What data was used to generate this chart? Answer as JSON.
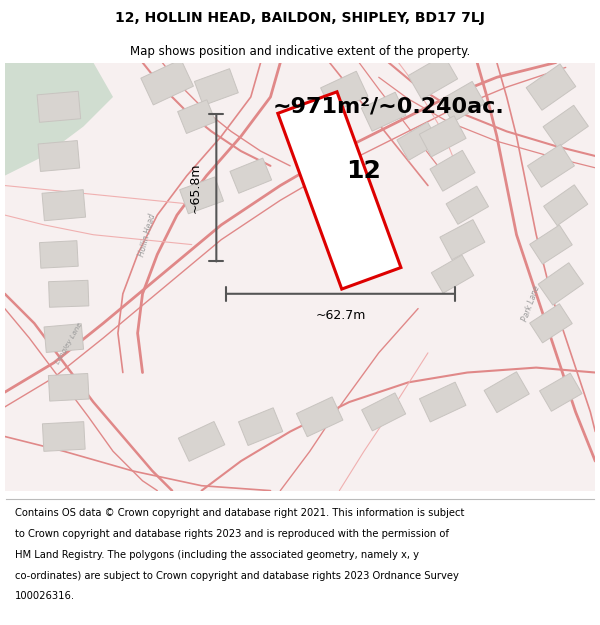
{
  "title": "12, HOLLIN HEAD, BAILDON, SHIPLEY, BD17 7LJ",
  "subtitle": "Map shows position and indicative extent of the property.",
  "footer_lines": [
    "Contains OS data © Crown copyright and database right 2021. This information is subject",
    "to Crown copyright and database rights 2023 and is reproduced with the permission of",
    "HM Land Registry. The polygons (including the associated geometry, namely x, y",
    "co-ordinates) are subject to Crown copyright and database rights 2023 Ordnance Survey",
    "100026316."
  ],
  "area_label": "~971m²/~0.240ac.",
  "plot_number": "12",
  "width_label": "~62.7m",
  "height_label": "~65.8m",
  "map_bg": "#f7f0f0",
  "plot_color": "#dd0000",
  "plot_fill": "#f8f4f4",
  "road_color": "#e08888",
  "road_color2": "#f0b0b0",
  "building_color": "#d8d4d0",
  "building_outline": "#c8c4c0",
  "green_color": "#d0ddd0",
  "dim_color": "#555555",
  "text_color": "#333333",
  "fig_width": 6.0,
  "fig_height": 6.25,
  "title_fontsize": 10,
  "subtitle_fontsize": 8.5,
  "area_fontsize": 16,
  "plotnum_fontsize": 18,
  "dim_fontsize": 9,
  "footer_fontsize": 7.2
}
